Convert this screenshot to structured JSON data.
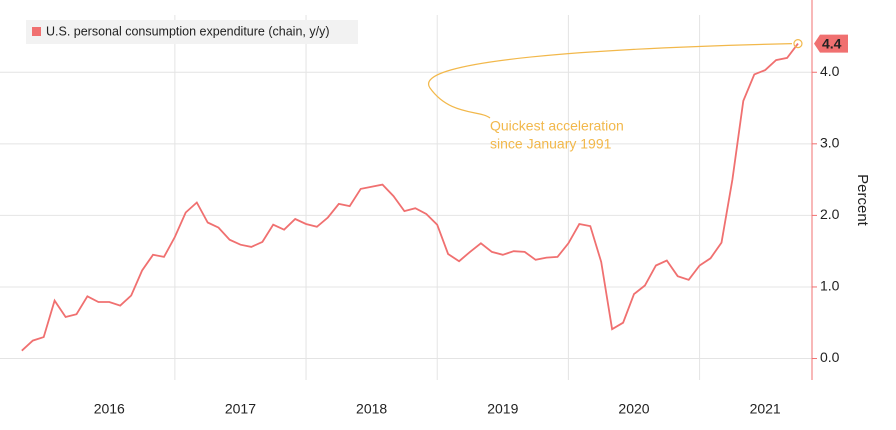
{
  "chart_data": {
    "type": "line",
    "legend": "U.S. personal consumption expenditure (chain, y/y)",
    "legend_position": "top-left",
    "y_axis_label": "Percent",
    "annotation": [
      "Quickest acceleration",
      "since January 1991"
    ],
    "annotation_color": "#f2b84b",
    "color": "#f07070",
    "x": [
      2015.833,
      2015.917,
      2016,
      2016.083,
      2016.167,
      2016.25,
      2016.333,
      2016.417,
      2016.5,
      2016.583,
      2016.667,
      2016.75,
      2016.833,
      2016.917,
      2017,
      2017.083,
      2017.167,
      2017.25,
      2017.333,
      2017.417,
      2017.5,
      2017.583,
      2017.667,
      2017.75,
      2017.833,
      2017.917,
      2018,
      2018.083,
      2018.167,
      2018.25,
      2018.333,
      2018.417,
      2018.5,
      2018.583,
      2018.667,
      2018.75,
      2018.833,
      2018.917,
      2019,
      2019.083,
      2019.167,
      2019.25,
      2019.333,
      2019.417,
      2019.5,
      2019.583,
      2019.667,
      2019.75,
      2019.833,
      2019.917,
      2020,
      2020.083,
      2020.167,
      2020.25,
      2020.333,
      2020.417,
      2020.5,
      2020.583,
      2020.667,
      2020.75,
      2020.833,
      2020.917,
      2021,
      2021.083,
      2021.167,
      2021.25,
      2021.333,
      2021.417,
      2021.5,
      2021.583,
      2021.667,
      2021.75
    ],
    "values": [
      0.11,
      0.25,
      0.3,
      0.81,
      0.58,
      0.62,
      0.87,
      0.79,
      0.79,
      0.74,
      0.88,
      1.23,
      1.45,
      1.42,
      1.7,
      2.04,
      2.18,
      1.9,
      1.83,
      1.66,
      1.59,
      1.56,
      1.63,
      1.87,
      1.8,
      1.95,
      1.88,
      1.84,
      1.97,
      2.16,
      2.13,
      2.37,
      2.4,
      2.43,
      2.27,
      2.06,
      2.1,
      2.02,
      1.87,
      1.46,
      1.36,
      1.49,
      1.61,
      1.49,
      1.45,
      1.5,
      1.49,
      1.38,
      1.41,
      1.42,
      1.61,
      1.88,
      1.85,
      1.35,
      0.41,
      0.5,
      0.9,
      1.02,
      1.3,
      1.37,
      1.15,
      1.1,
      1.3,
      1.4,
      1.62,
      2.5,
      3.6,
      3.97,
      4.03,
      4.17,
      4.2,
      4.4
    ],
    "xlim": [
      2015.667,
      2021.857
    ],
    "xticks": [
      {
        "value": 2016.5,
        "label": "2016"
      },
      {
        "value": 2017.5,
        "label": "2017"
      },
      {
        "value": 2018.5,
        "label": "2018"
      },
      {
        "value": 2019.5,
        "label": "2019"
      },
      {
        "value": 2020.5,
        "label": "2020"
      },
      {
        "value": 2021.5,
        "label": "2021"
      }
    ],
    "xgrid": [
      2017,
      2018,
      2019,
      2020,
      2021
    ],
    "ylim": [
      -0.3,
      4.8
    ],
    "yticks": [
      {
        "value": 0,
        "label": "0.0"
      },
      {
        "value": 1,
        "label": "1.0"
      },
      {
        "value": 2,
        "label": "2.0"
      },
      {
        "value": 3,
        "label": "3.0"
      },
      {
        "value": 4,
        "label": "4.0"
      }
    ],
    "grid": true
  }
}
